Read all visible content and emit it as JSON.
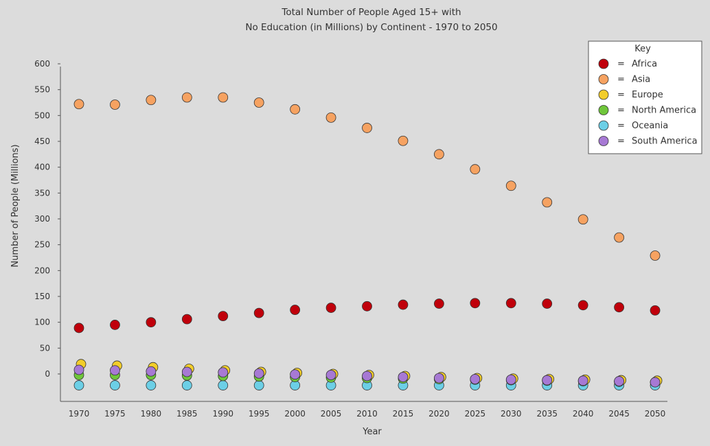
{
  "chart_data": {
    "type": "scatter",
    "title_lines": [
      "Total Number of People Aged 15+ with",
      "No Education (in Millions) by Continent - 1970 to 2050"
    ],
    "xlabel": "Year",
    "ylabel": "Number of People (Millions)",
    "yticks": [
      0,
      50,
      100,
      150,
      200,
      250,
      300,
      350,
      400,
      450,
      500,
      550,
      600
    ],
    "categories": [
      "1970",
      "1975",
      "1980",
      "1985",
      "1990",
      "1995",
      "2000",
      "2005",
      "2010",
      "2015",
      "2020",
      "2025",
      "2030",
      "2035",
      "2040",
      "2045",
      "2050"
    ],
    "legend": {
      "title": "Key",
      "equals": "=",
      "position": "top-right"
    },
    "series": [
      {
        "name": "Africa",
        "color": "#c0000b",
        "values": [
          89,
          95,
          100,
          106,
          112,
          118,
          124,
          128,
          131,
          134,
          136,
          137,
          137,
          136,
          133,
          129,
          123
        ]
      },
      {
        "name": "Asia",
        "color": "#f6a261",
        "values": [
          522,
          521,
          530,
          535,
          535,
          525,
          512,
          496,
          476,
          451,
          425,
          396,
          364,
          332,
          299,
          264,
          229
        ]
      },
      {
        "name": "Europe",
        "color": "#f2cd2b",
        "values": [
          19,
          16,
          13,
          10,
          7,
          4,
          2,
          0,
          -2,
          -4,
          -6,
          -8,
          -9,
          -10,
          -11,
          -12,
          -13
        ]
      },
      {
        "name": "North America",
        "color": "#6fc63b",
        "values": [
          -2,
          -2,
          -2,
          -3,
          -4,
          -5,
          -6,
          -7,
          -8,
          -9,
          -10,
          -11,
          -12,
          -13,
          -14,
          -15,
          -16
        ]
      },
      {
        "name": "Oceania",
        "color": "#6ccfe6",
        "values": [
          -22,
          -22,
          -22,
          -22,
          -22,
          -22,
          -22,
          -22,
          -22,
          -22,
          -22,
          -22,
          -22,
          -22,
          -22,
          -22,
          -22
        ]
      },
      {
        "name": "South America",
        "color": "#a779d4",
        "values": [
          8,
          7,
          5,
          4,
          3,
          1,
          -1,
          -2,
          -4,
          -6,
          -8,
          -10,
          -11,
          -12,
          -13,
          -14,
          -16
        ]
      }
    ]
  }
}
